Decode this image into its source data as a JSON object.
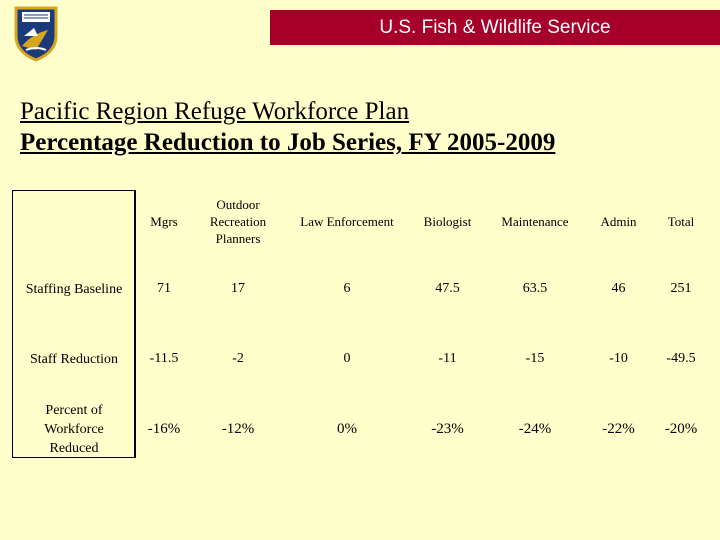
{
  "header": {
    "agency": "U.S. Fish & Wildlife Service"
  },
  "logo": {
    "icon": "usfws-shield-logo-icon",
    "colors": {
      "shield": "#1a3a7a",
      "gold": "#d8a520",
      "white": "#ffffff"
    }
  },
  "page": {
    "title_line1": "Pacific Region Refuge Workforce Plan",
    "title_line2": "Percentage Reduction to Job Series, FY 2005-2009"
  },
  "table": {
    "columns": [
      "Mgrs",
      "Outdoor Recreation Planners",
      "Law Enforcement",
      "Biologist",
      "Maintenance",
      "Admin",
      "Total"
    ],
    "rows": [
      {
        "label": "Staffing Baseline",
        "values": [
          "71",
          "17",
          "6",
          "47.5",
          "63.5",
          "46",
          "251"
        ]
      },
      {
        "label": "Staff Reduction",
        "values": [
          "-11.5",
          "-2",
          "0",
          "-11",
          "-15",
          "-10",
          "-49.5"
        ]
      },
      {
        "label": "Percent of Workforce Reduced",
        "values": [
          "-16%",
          "-12%",
          "0%",
          "-23%",
          "-24%",
          "-22%",
          "-20%"
        ]
      }
    ]
  },
  "colors": {
    "background": "#ffffcc",
    "banner": "#a6002a",
    "banner_text": "#ffffff"
  }
}
